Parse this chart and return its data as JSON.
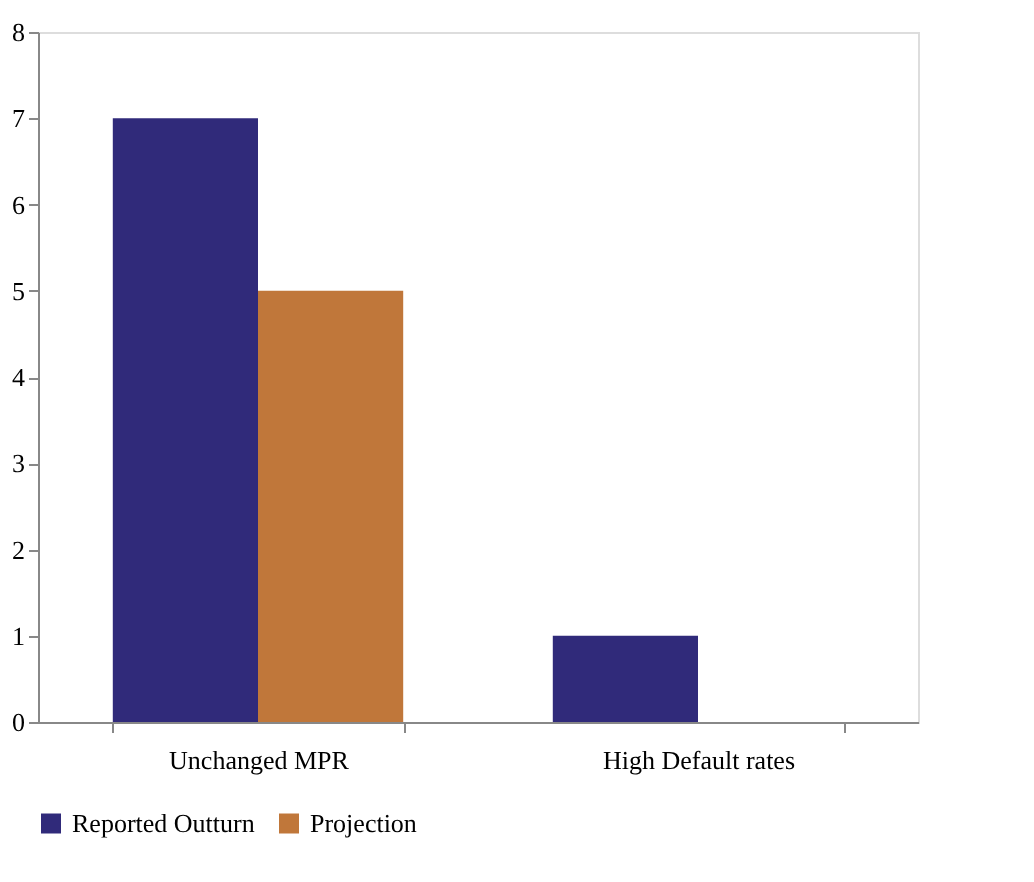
{
  "chart_data": {
    "type": "bar",
    "categories": [
      "Unchanged MPR",
      "High Default rates"
    ],
    "series": [
      {
        "name": "Reported Outturn",
        "color": "#302a7a",
        "values": [
          7,
          1
        ]
      },
      {
        "name": "Projection",
        "color": "#c0773a",
        "values": [
          5,
          0
        ]
      }
    ],
    "ylim": [
      0,
      8
    ],
    "yticks": [
      0,
      1,
      2,
      3,
      4,
      5,
      6,
      7,
      8
    ],
    "grid": false,
    "legend": "bottom"
  }
}
